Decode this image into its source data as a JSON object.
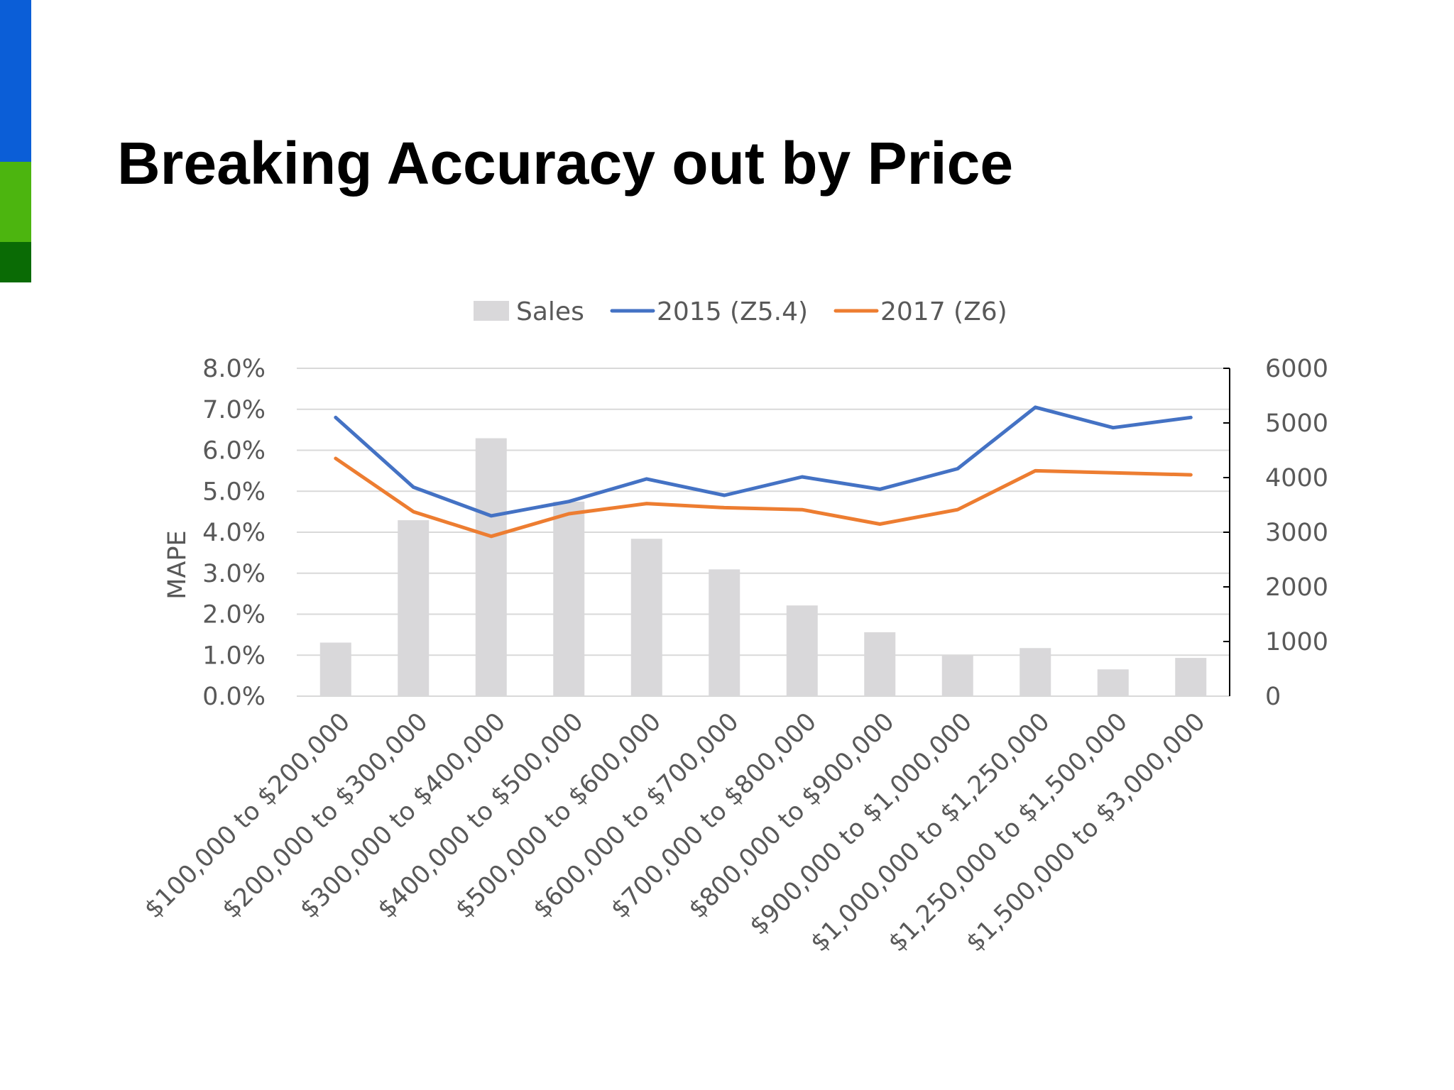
{
  "slide": {
    "title": "Breaking Accuracy out by Price",
    "accent_colors": [
      "#0b5ed7",
      "#4cb50f",
      "#0a6b05"
    ]
  },
  "chart_data": {
    "type": "bar",
    "title": "",
    "ylabel": "MAPE",
    "y2label": "",
    "xlabel": "",
    "categories": [
      "$100,000 to $200,000",
      "$200,000 to $300,000",
      "$300,000 to $400,000",
      "$400,000 to $500,000",
      "$500,000 to $600,000",
      "$600,000 to $700,000",
      "$700,000 to $800,000",
      "$800,000 to $900,000",
      "$900,000 to $1,000,000",
      "$1,000,000 to $1,250,000",
      "$1,250,000 to $1,500,000",
      "$1,500,000 to $3,000,000"
    ],
    "series": [
      {
        "name": "Sales",
        "type": "bar",
        "axis": "right",
        "color": "#d9d8da",
        "values": [
          980,
          3220,
          4720,
          3560,
          2880,
          2320,
          1660,
          1170,
          740,
          880,
          490,
          700
        ]
      },
      {
        "name": "2015 (Z5.4)",
        "type": "line",
        "axis": "left",
        "color": "#4472c4",
        "values": [
          6.8,
          5.1,
          4.4,
          4.75,
          5.3,
          4.9,
          5.35,
          5.05,
          5.55,
          7.05,
          6.55,
          6.8
        ]
      },
      {
        "name": "2017 (Z6)",
        "type": "line",
        "axis": "left",
        "color": "#ed7d31",
        "values": [
          5.8,
          4.5,
          3.9,
          4.45,
          4.7,
          4.6,
          4.55,
          4.2,
          4.55,
          5.5,
          5.45,
          5.4
        ]
      }
    ],
    "y_left": {
      "min": 0,
      "max": 8,
      "ticks": [
        "0.0%",
        "1.0%",
        "2.0%",
        "3.0%",
        "4.0%",
        "5.0%",
        "6.0%",
        "7.0%",
        "8.0%"
      ]
    },
    "y_right": {
      "min": 0,
      "max": 6000,
      "ticks": [
        "0",
        "1000",
        "2000",
        "3000",
        "4000",
        "5000",
        "6000"
      ]
    },
    "grid": true,
    "legend_position": "top-center"
  }
}
